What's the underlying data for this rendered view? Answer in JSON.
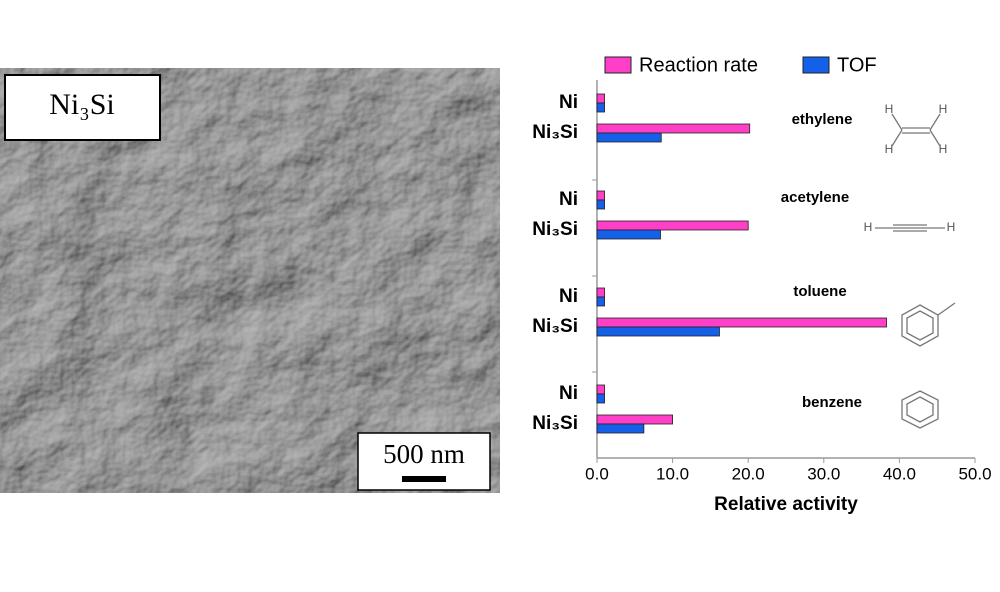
{
  "image": {
    "label": "Ni₃Si",
    "scale_bar": "500 nm"
  },
  "chart_data": {
    "type": "bar",
    "orientation": "horizontal",
    "xlabel": "Relative activity",
    "categories": [
      "Ni",
      "Ni₃Si",
      "Ni",
      "Ni₃Si",
      "Ni",
      "Ni₃Si",
      "Ni",
      "Ni₃Si"
    ],
    "groups": [
      "ethylene",
      "acetylene",
      "toluene",
      "benzene"
    ],
    "series": [
      {
        "name": "Reaction rate",
        "color": "#ff3fc8",
        "values": [
          1,
          20.2,
          1,
          20,
          1,
          38.3,
          1,
          10
        ]
      },
      {
        "name": "TOF",
        "color": "#1560e8",
        "values": [
          1,
          8.5,
          1,
          8.4,
          1,
          16.2,
          1,
          6.2
        ]
      }
    ],
    "xlim": [
      0,
      50
    ],
    "xticks": [
      {
        "value": 0,
        "label": "0.0"
      },
      {
        "value": 10,
        "label": "10.0"
      },
      {
        "value": 20,
        "label": "20.0"
      },
      {
        "value": 30,
        "label": "30.0"
      },
      {
        "value": 40,
        "label": "40.0"
      },
      {
        "value": 50,
        "label": "50.0"
      }
    ],
    "legend": "top"
  }
}
